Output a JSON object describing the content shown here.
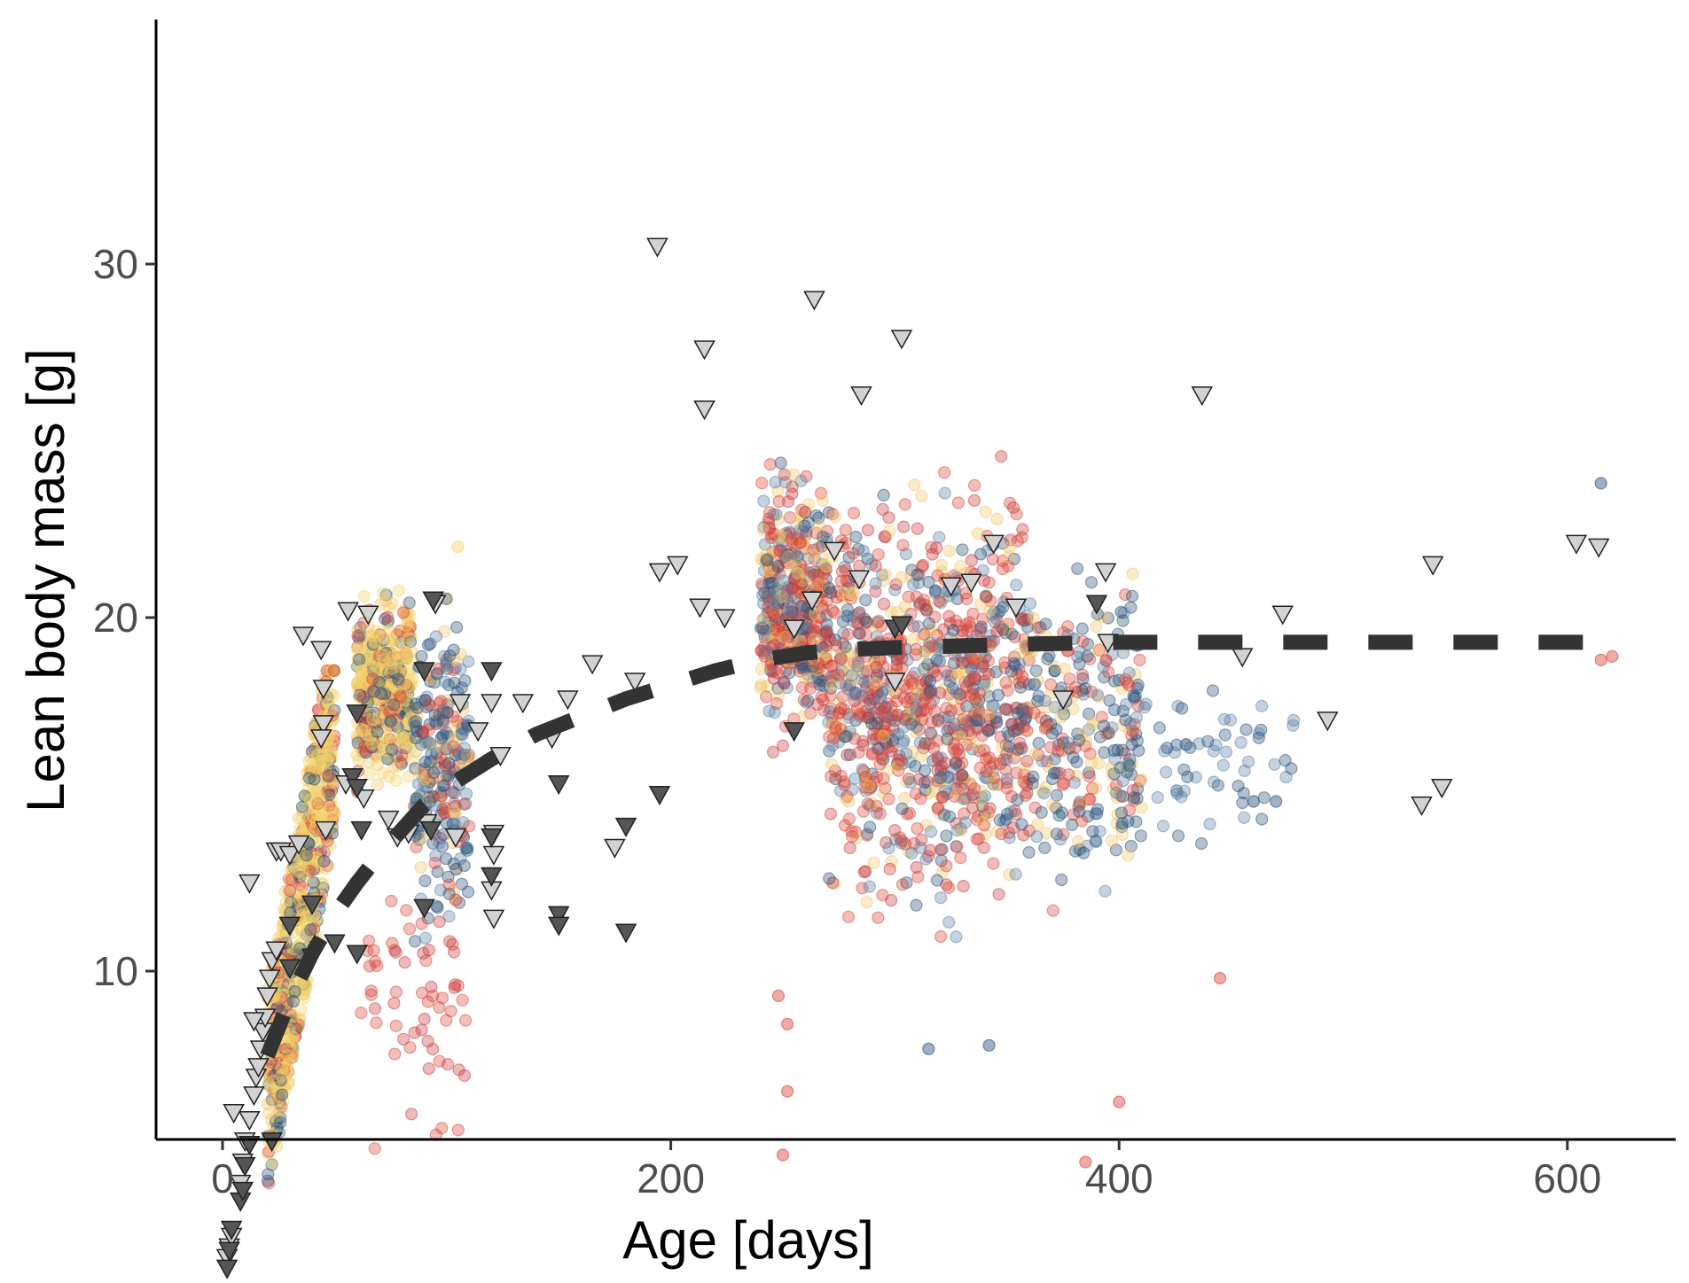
{
  "chart_data": {
    "type": "scatter",
    "title": "",
    "xlabel": "Age [days]",
    "ylabel": "Lean body mass [g]",
    "xlim": [
      -15,
      650
    ],
    "ylim": [
      0.5,
      32
    ],
    "grid": false,
    "legend": "none",
    "x_ticks": [
      0,
      200,
      400,
      600
    ],
    "y_ticks": [
      10,
      20,
      30
    ],
    "x_tick_labels": [
      "0",
      "200",
      "400",
      "600"
    ],
    "y_tick_labels": [
      "10",
      "20",
      "30"
    ],
    "colors": {
      "point_palette": [
        "#f3d56a",
        "#f0c76a",
        "#d94538",
        "#c83a3a",
        "#294f78",
        "#5a7fa3"
      ],
      "triangle_light": "#d2d2d2",
      "triangle_dark": "#555555",
      "trend": "#333333",
      "axis": "#000000",
      "tick_label": "#4d4d4d"
    },
    "point_clusters": [
      {
        "x": [
          20,
          50
        ],
        "y": [
          4,
          18.5
        ],
        "trend": "rising",
        "n": 700,
        "palette": "mixed-yellow"
      },
      {
        "x": [
          60,
          85
        ],
        "y": [
          14.5,
          21.5
        ],
        "n": 450,
        "palette": "mixed-yellow"
      },
      {
        "x": [
          85,
          110
        ],
        "y": [
          10,
          21.5
        ],
        "n": 260,
        "palette": "mixed-blue"
      },
      {
        "x": [
          60,
          110
        ],
        "y": [
          4.5,
          14
        ],
        "n": 60,
        "palette": "red"
      },
      {
        "x": [
          240,
          270
        ],
        "y": [
          16,
          24.8
        ],
        "n": 450,
        "palette": "mixed-red"
      },
      {
        "x": [
          270,
          360
        ],
        "y": [
          10.5,
          25
        ],
        "n": 1000,
        "palette": "mixed-red"
      },
      {
        "x": [
          360,
          410
        ],
        "y": [
          11,
          22
        ],
        "n": 260,
        "palette": "mixed-blue"
      },
      {
        "x": [
          400,
          480
        ],
        "y": [
          12.5,
          20
        ],
        "n": 70,
        "palette": "blue"
      }
    ],
    "extra_points": [
      {
        "x": 250,
        "y": 4.8,
        "c": "red"
      },
      {
        "x": 252,
        "y": 6.6,
        "c": "red"
      },
      {
        "x": 248,
        "y": 9.3,
        "c": "red"
      },
      {
        "x": 252,
        "y": 8.5,
        "c": "red"
      },
      {
        "x": 385,
        "y": 4.6,
        "c": "red"
      },
      {
        "x": 400,
        "y": 6.3,
        "c": "red"
      },
      {
        "x": 445,
        "y": 9.8,
        "c": "red"
      },
      {
        "x": 315,
        "y": 7.8,
        "c": "blue"
      },
      {
        "x": 342,
        "y": 7.9,
        "c": "blue"
      },
      {
        "x": 615,
        "y": 23.8,
        "c": "blue"
      },
      {
        "x": 615,
        "y": 18.8,
        "c": "red"
      },
      {
        "x": 620,
        "y": 18.9,
        "c": "red"
      },
      {
        "x": 470,
        "y": 14.8,
        "c": "blue"
      },
      {
        "x": 460,
        "y": 14.8,
        "c": "blue"
      },
      {
        "x": 105,
        "y": 22,
        "c": "yellow"
      }
    ],
    "triangles_light": [
      [
        2,
        1.9
      ],
      [
        3,
        2.2
      ],
      [
        4,
        2.5
      ],
      [
        8,
        4
      ],
      [
        9,
        4.6
      ],
      [
        10,
        5.2
      ],
      [
        12,
        5.8
      ],
      [
        5,
        6
      ],
      [
        14,
        6.5
      ],
      [
        15,
        7
      ],
      [
        16,
        7.3
      ],
      [
        17,
        7.8
      ],
      [
        18,
        8.3
      ],
      [
        19,
        8.7
      ],
      [
        20,
        9.3
      ],
      [
        21,
        9.8
      ],
      [
        22,
        10.3
      ],
      [
        24,
        10.6
      ],
      [
        14,
        8.6
      ],
      [
        12,
        12.5
      ],
      [
        24,
        13.4
      ],
      [
        26,
        13.4
      ],
      [
        30,
        13.3
      ],
      [
        34,
        13.6
      ],
      [
        36,
        19.5
      ],
      [
        44,
        19.1
      ],
      [
        45,
        18
      ],
      [
        45,
        17
      ],
      [
        44,
        16.6
      ],
      [
        46,
        14
      ],
      [
        55,
        15.3
      ],
      [
        56,
        20.2
      ],
      [
        65,
        20.1
      ],
      [
        63,
        14.9
      ],
      [
        74,
        14.3
      ],
      [
        78,
        13.8
      ],
      [
        83,
        13.9
      ],
      [
        91,
        14.2
      ],
      [
        95,
        20.4
      ],
      [
        104,
        13.8
      ],
      [
        106,
        17.6
      ],
      [
        114,
        16.8
      ],
      [
        120,
        17.6
      ],
      [
        120,
        12.3
      ],
      [
        121,
        13.9
      ],
      [
        121,
        13.3
      ],
      [
        121,
        11.5
      ],
      [
        124,
        16.1
      ],
      [
        134,
        17.6
      ],
      [
        147,
        16.6
      ],
      [
        154,
        17.7
      ],
      [
        165,
        18.7
      ],
      [
        175,
        13.5
      ],
      [
        184,
        18.2
      ],
      [
        194,
        30.5
      ],
      [
        195,
        21.3
      ],
      [
        203,
        21.5
      ],
      [
        213,
        20.3
      ],
      [
        215,
        27.6
      ],
      [
        215,
        25.9
      ],
      [
        224,
        20
      ],
      [
        255,
        19.7
      ],
      [
        263,
        20.5
      ],
      [
        264,
        29
      ],
      [
        273,
        21.9
      ],
      [
        284,
        21.1
      ],
      [
        285,
        26.3
      ],
      [
        303,
        27.9
      ],
      [
        300,
        18.2
      ],
      [
        325,
        20.9
      ],
      [
        334,
        21
      ],
      [
        344,
        22.1
      ],
      [
        354,
        20.3
      ],
      [
        375,
        17.7
      ],
      [
        394,
        21.3
      ],
      [
        395,
        19.3
      ],
      [
        437,
        26.3
      ],
      [
        455,
        18.9
      ],
      [
        473,
        20.1
      ],
      [
        493,
        17.1
      ],
      [
        535,
        14.7
      ],
      [
        540,
        21.5
      ],
      [
        544,
        15.2
      ],
      [
        604,
        22.1
      ],
      [
        614,
        22
      ]
    ],
    "triangles_dark": [
      [
        2,
        1.6
      ],
      [
        3,
        2.1
      ],
      [
        4,
        2.7
      ],
      [
        8,
        3.5
      ],
      [
        9,
        3.8
      ],
      [
        10,
        4.5
      ],
      [
        12,
        5.1
      ],
      [
        22,
        5.2
      ],
      [
        30,
        10.1
      ],
      [
        30,
        11.3
      ],
      [
        40,
        11.9
      ],
      [
        40,
        10.4
      ],
      [
        50,
        10.8
      ],
      [
        60,
        10.5
      ],
      [
        62,
        14
      ],
      [
        60,
        17.3
      ],
      [
        58,
        15.5
      ],
      [
        60,
        15.2
      ],
      [
        90,
        11.8
      ],
      [
        90,
        18.5
      ],
      [
        93,
        14
      ],
      [
        94,
        20.5
      ],
      [
        120,
        18.5
      ],
      [
        120,
        13.8
      ],
      [
        120,
        12.7
      ],
      [
        150,
        11.6
      ],
      [
        150,
        11.3
      ],
      [
        150,
        15.3
      ],
      [
        180,
        11.1
      ],
      [
        180,
        14.1
      ],
      [
        195,
        15
      ],
      [
        255,
        16.8
      ],
      [
        300,
        19.7
      ],
      [
        303,
        19.8
      ],
      [
        390,
        20.4
      ]
    ],
    "trend_line": {
      "style": "dashed",
      "x": [
        20,
        30,
        40,
        50,
        60,
        70,
        80,
        90,
        100,
        110,
        120,
        140,
        160,
        180,
        200,
        220,
        240,
        260,
        280,
        300,
        330,
        360,
        400,
        450,
        500,
        550,
        600,
        620
      ],
      "y": [
        7.6,
        9.2,
        10.5,
        11.6,
        12.5,
        13.3,
        14.0,
        14.7,
        15.2,
        15.6,
        16.0,
        16.7,
        17.2,
        17.7,
        18.1,
        18.5,
        18.8,
        19.0,
        19.1,
        19.15,
        19.2,
        19.25,
        19.3,
        19.3,
        19.3,
        19.3,
        19.3,
        19.3
      ]
    }
  }
}
